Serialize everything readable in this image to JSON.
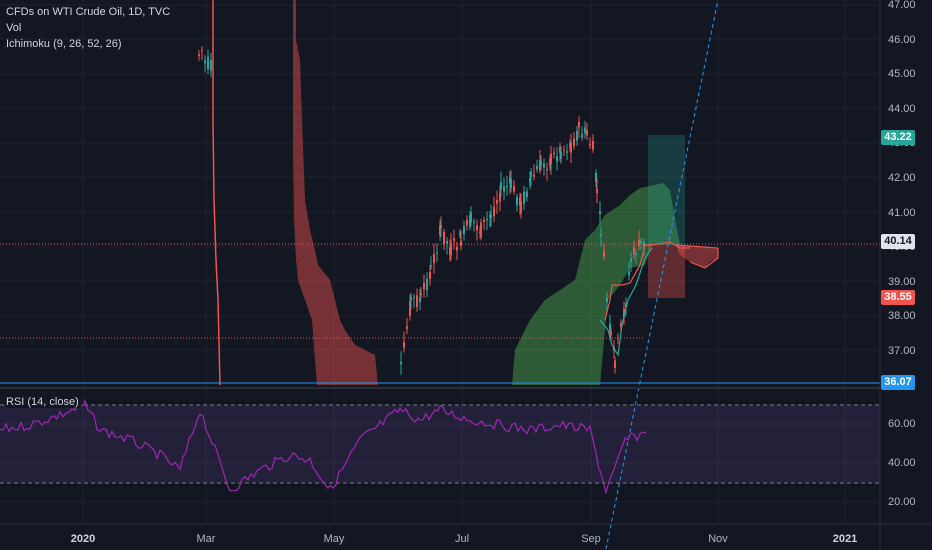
{
  "legend": {
    "title": "CFDs on WTI Crude Oil, 1D, TVC",
    "vol": "Vol",
    "ichimoku": "Ichimoku (9, 26, 52, 26)",
    "rsi": "RSI (14, close)"
  },
  "price_axis": [
    "47.00",
    "46.00",
    "45.00",
    "44.00",
    "43.00",
    "42.00",
    "41.00",
    "40.00",
    "39.00",
    "38.00",
    "37.00"
  ],
  "rsi_axis": [
    "60.00",
    "40.00",
    "20.00"
  ],
  "time_axis": [
    "2020",
    "Mar",
    "May",
    "Jul",
    "Sep",
    "Nov",
    "2021"
  ],
  "price_tags": {
    "target": "43.22",
    "current": "40.14",
    "stop": "38.55",
    "level": "36.07"
  },
  "colors": {
    "background": "#131722",
    "up": "#26a69a",
    "down": "#ef5350",
    "rsi": "#9c27b0",
    "blue_level": "#2196f3"
  },
  "chart_data": {
    "type": "candlestick",
    "instrument": "CFDs on WTI Crude Oil",
    "timeframe": "1D",
    "indicators": [
      "Vol",
      "Ichimoku (9, 26, 52, 26)",
      "RSI (14, close)"
    ],
    "price_ylim": [
      36.07,
      47.0
    ],
    "rsi_ylim": [
      10,
      72
    ],
    "last_price": 40.14,
    "horizontal_level": 36.07,
    "long_position": {
      "target": 43.22,
      "stop": 38.55
    },
    "rsi_band": [
      70,
      30
    ],
    "time_labels": [
      "2020",
      "Mar",
      "May",
      "Jul",
      "Sep",
      "Nov",
      "2021"
    ]
  }
}
